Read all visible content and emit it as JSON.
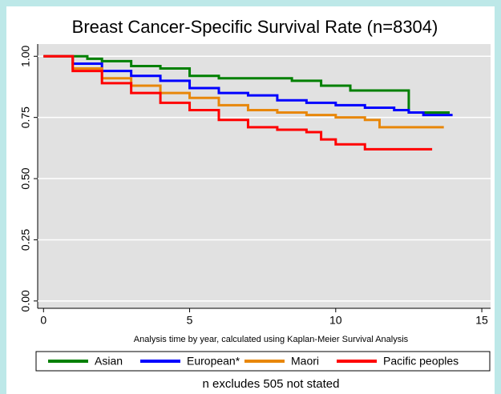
{
  "chart_data": {
    "type": "line",
    "step": true,
    "title": "Breast Cancer-Specific Survival Rate (n=8304)",
    "x_label": "Analysis time by year, calculated using Kaplan-Meier Survival Analysis",
    "footnote": "n excludes 505 not stated",
    "xlim": [
      -0.2,
      15.3
    ],
    "ylim": [
      -0.03,
      1.05
    ],
    "xticks": [
      0,
      5,
      10,
      15
    ],
    "yticks": [
      {
        "value": 0,
        "label": "0.00"
      },
      {
        "value": 0.25,
        "label": "0.25"
      },
      {
        "value": 0.5,
        "label": "0.50"
      },
      {
        "value": 0.75,
        "label": "0.75"
      },
      {
        "value": 1,
        "label": "1.00"
      }
    ],
    "grid": true,
    "legend": "bottom",
    "series": [
      {
        "name": "Asian",
        "color": "#008000",
        "x": [
          0,
          1.5,
          2,
          3,
          4,
          5,
          6,
          8.5,
          9.5,
          10.5,
          12.5,
          13.9
        ],
        "values": [
          1,
          0.99,
          0.98,
          0.96,
          0.95,
          0.92,
          0.91,
          0.9,
          0.88,
          0.86,
          0.77,
          0.77
        ]
      },
      {
        "name": "European*",
        "color": "#0000ff",
        "x": [
          0,
          1,
          2,
          3,
          4,
          5,
          6,
          7,
          8,
          9,
          10,
          11,
          12,
          12.5,
          13,
          14
        ],
        "values": [
          1,
          0.97,
          0.94,
          0.92,
          0.9,
          0.87,
          0.85,
          0.84,
          0.82,
          0.81,
          0.8,
          0.79,
          0.78,
          0.77,
          0.76,
          0.76
        ]
      },
      {
        "name": "Maori",
        "color": "#e8870a",
        "x": [
          0,
          1,
          2,
          3,
          4,
          5,
          6,
          7,
          8,
          9,
          10,
          11,
          11.5,
          13.7
        ],
        "values": [
          1,
          0.95,
          0.91,
          0.88,
          0.85,
          0.83,
          0.8,
          0.78,
          0.77,
          0.76,
          0.75,
          0.74,
          0.71,
          0.71
        ]
      },
      {
        "name": "Pacific peoples",
        "color": "#ff0000",
        "x": [
          0,
          1,
          2,
          3,
          4,
          5,
          6,
          7,
          8,
          9,
          9.5,
          10,
          11,
          13.3
        ],
        "values": [
          1,
          0.94,
          0.89,
          0.85,
          0.81,
          0.78,
          0.74,
          0.71,
          0.7,
          0.69,
          0.66,
          0.64,
          0.62,
          0.62
        ]
      }
    ]
  }
}
